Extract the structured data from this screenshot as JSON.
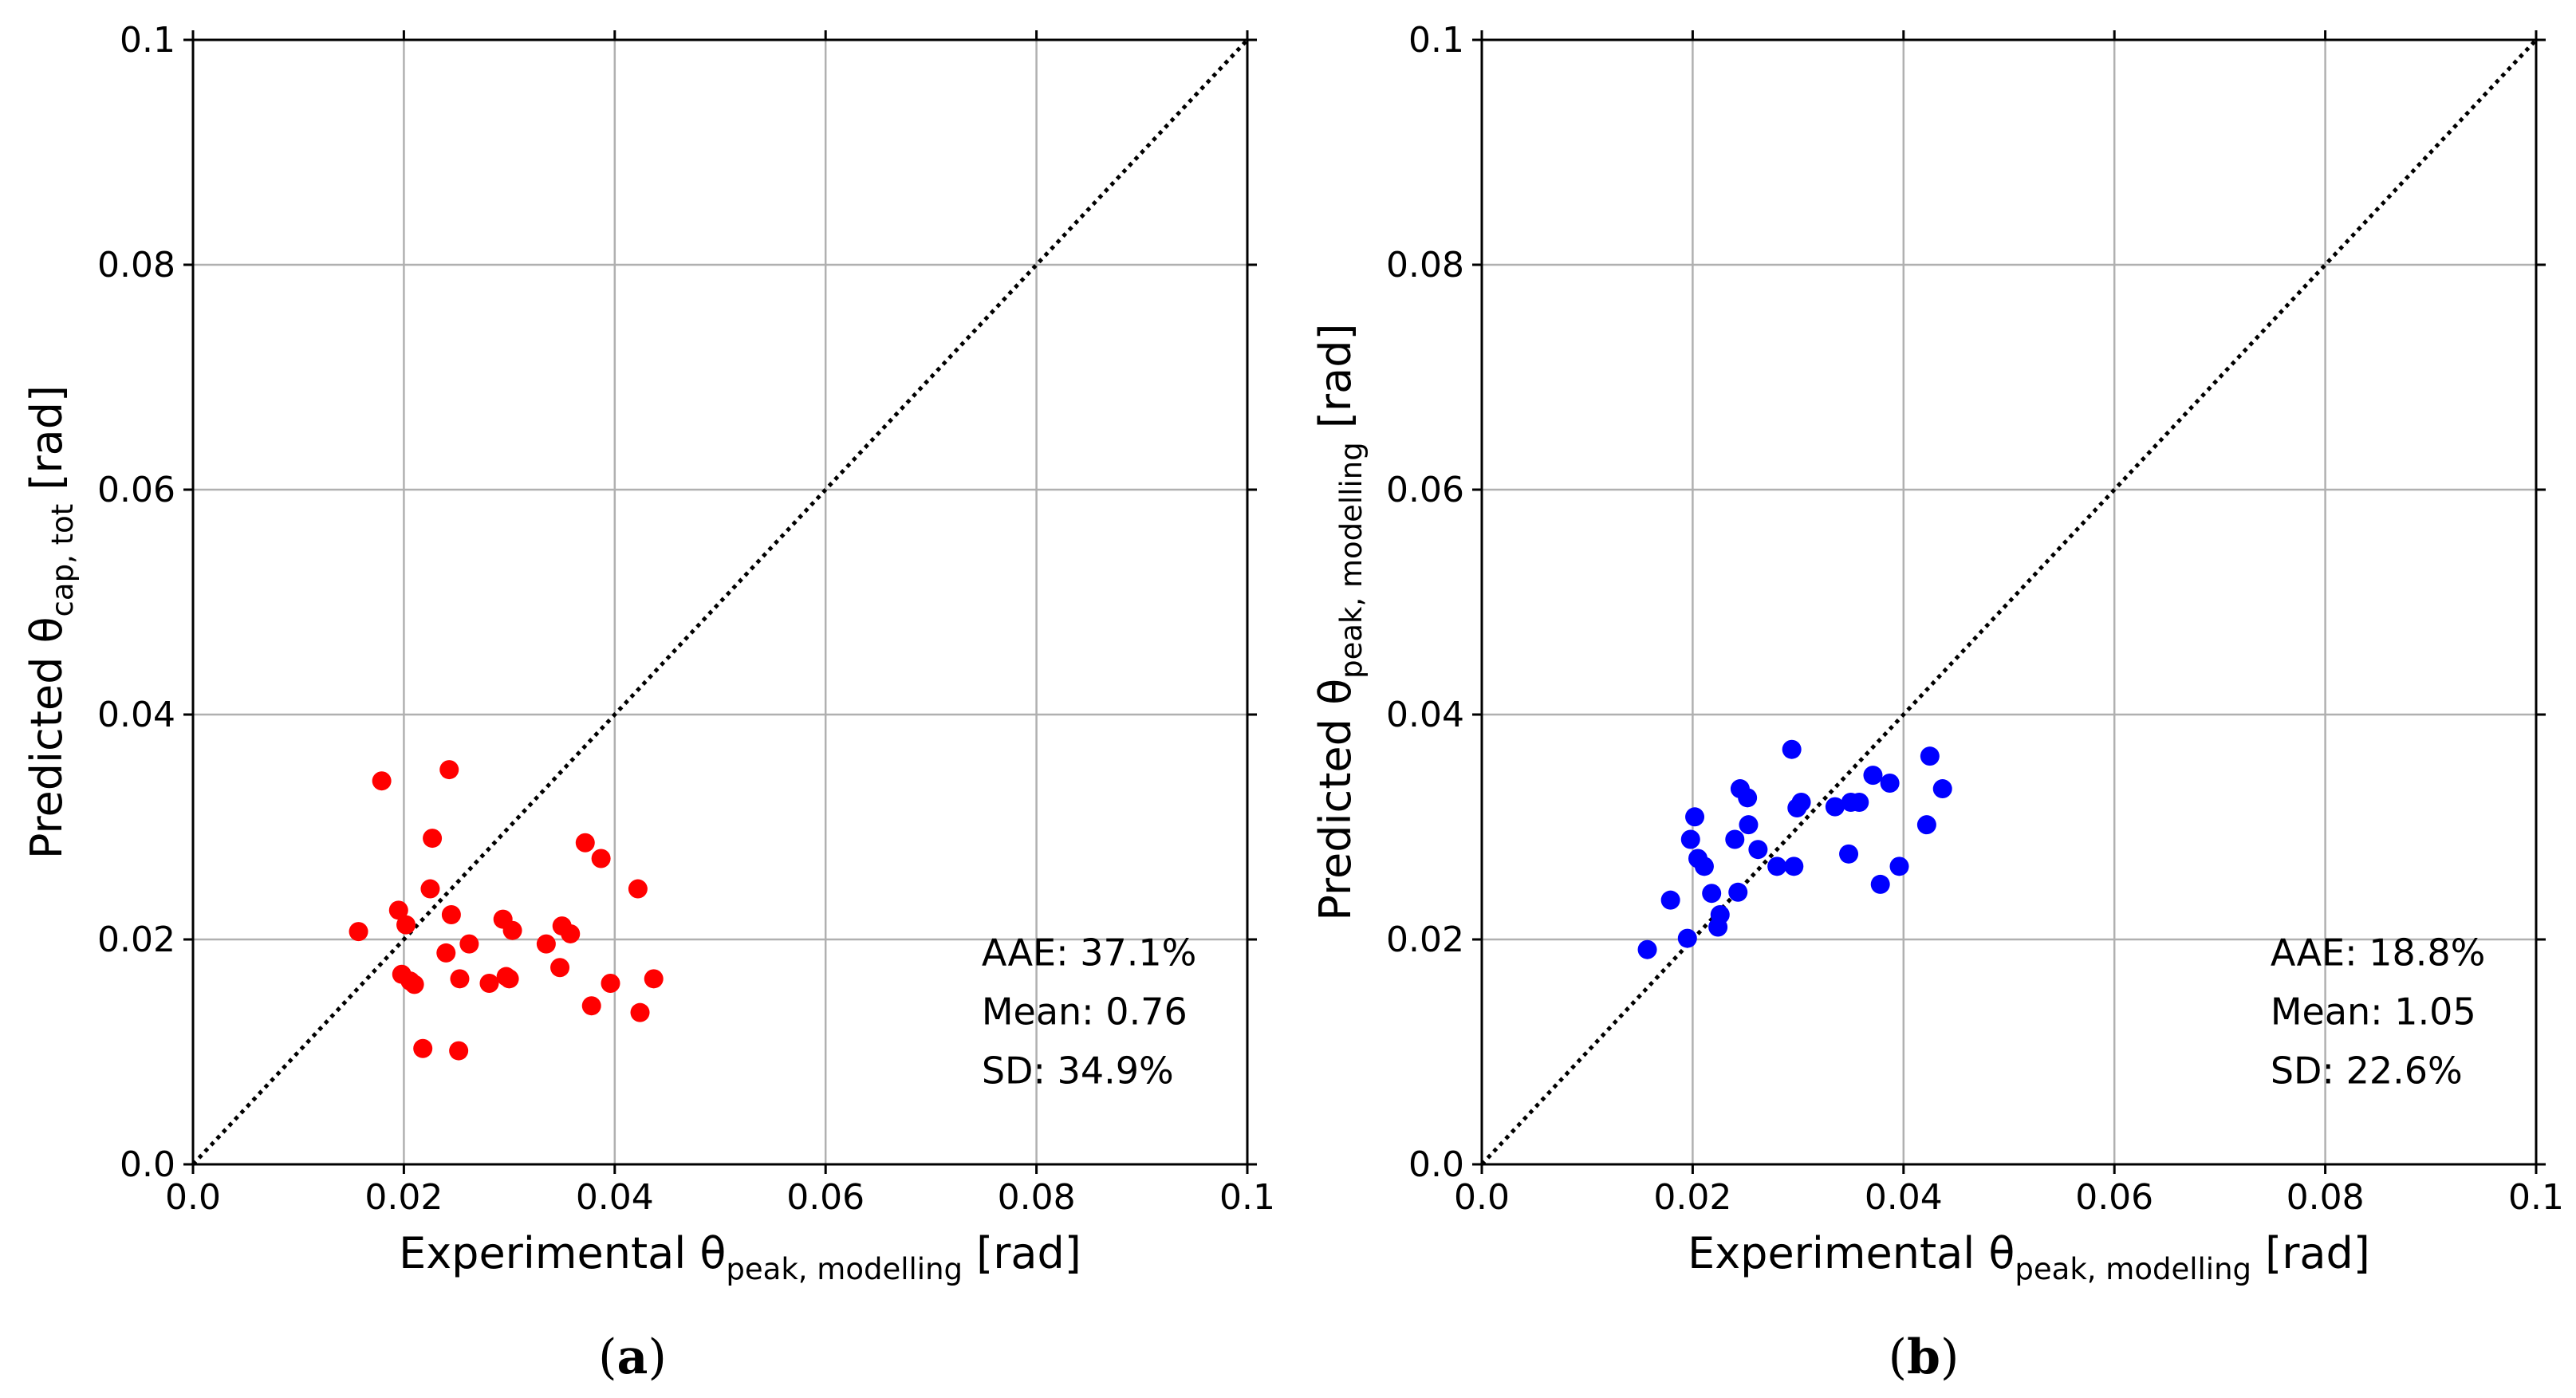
{
  "chart_data": [
    {
      "panel": "(a)",
      "type": "scatter",
      "caption": {
        "open": "(",
        "letter": "a",
        "close": ")"
      },
      "xlabel": {
        "main": "Experimental θ",
        "sub": "peak, modelling",
        "unit": " [rad]"
      },
      "ylabel": {
        "main": "Predicted θ",
        "sub": "cap, tot",
        "unit": " [rad]"
      },
      "xlim": [
        0,
        0.1
      ],
      "ylim": [
        0,
        0.1
      ],
      "xticks": [
        "0.0",
        "0.02",
        "0.04",
        "0.06",
        "0.08",
        "0.1"
      ],
      "yticks": [
        "0.0",
        "0.02",
        "0.04",
        "0.06",
        "0.08",
        "0.1"
      ],
      "grid": true,
      "reference_line": {
        "style": "dotted",
        "from": [
          0,
          0
        ],
        "to": [
          0.1,
          0.1
        ]
      },
      "marker_color": "#ff0000",
      "stats": [
        "AAE: 37.1%",
        "Mean: 0.76",
        "SD: 34.9%"
      ],
      "points": [
        [
          0.0157,
          0.0207
        ],
        [
          0.0179,
          0.0341
        ],
        [
          0.0195,
          0.0226
        ],
        [
          0.0198,
          0.0169
        ],
        [
          0.0202,
          0.0213
        ],
        [
          0.0206,
          0.0163
        ],
        [
          0.021,
          0.016
        ],
        [
          0.0218,
          0.0103
        ],
        [
          0.0225,
          0.0245
        ],
        [
          0.0227,
          0.029
        ],
        [
          0.024,
          0.0188
        ],
        [
          0.0243,
          0.0351
        ],
        [
          0.0245,
          0.0222
        ],
        [
          0.0252,
          0.0101
        ],
        [
          0.0253,
          0.0165
        ],
        [
          0.0262,
          0.0196
        ],
        [
          0.0281,
          0.0161
        ],
        [
          0.0294,
          0.0218
        ],
        [
          0.0297,
          0.0167
        ],
        [
          0.03,
          0.0165
        ],
        [
          0.0303,
          0.0208
        ],
        [
          0.0335,
          0.0196
        ],
        [
          0.0348,
          0.0175
        ],
        [
          0.035,
          0.0212
        ],
        [
          0.0358,
          0.0205
        ],
        [
          0.0372,
          0.0286
        ],
        [
          0.0378,
          0.0141
        ],
        [
          0.0387,
          0.0272
        ],
        [
          0.0396,
          0.0161
        ],
        [
          0.0422,
          0.0245
        ],
        [
          0.0424,
          0.0135
        ],
        [
          0.0437,
          0.0165
        ]
      ]
    },
    {
      "panel": "(b)",
      "type": "scatter",
      "caption": {
        "open": "(",
        "letter": "b",
        "close": ")"
      },
      "xlabel": {
        "main": "Experimental θ",
        "sub": "peak, modelling",
        "unit": " [rad]"
      },
      "ylabel": {
        "main": "Predicted θ",
        "sub": "peak, modelling",
        "unit": " [rad]"
      },
      "xlim": [
        0,
        0.1
      ],
      "ylim": [
        0,
        0.1
      ],
      "xticks": [
        "0.0",
        "0.02",
        "0.04",
        "0.06",
        "0.08",
        "0.1"
      ],
      "yticks": [
        "0.0",
        "0.02",
        "0.04",
        "0.06",
        "0.08",
        "0.1"
      ],
      "grid": true,
      "reference_line": {
        "style": "dotted",
        "from": [
          0,
          0
        ],
        "to": [
          0.1,
          0.1
        ]
      },
      "marker_color": "#0000ff",
      "stats": [
        "AAE: 18.8%",
        "Mean: 1.05",
        "SD: 22.6%"
      ],
      "points": [
        [
          0.0157,
          0.0191
        ],
        [
          0.0179,
          0.0235
        ],
        [
          0.0195,
          0.0201
        ],
        [
          0.0198,
          0.0289
        ],
        [
          0.0202,
          0.0309
        ],
        [
          0.0205,
          0.0272
        ],
        [
          0.0211,
          0.0265
        ],
        [
          0.0218,
          0.0241
        ],
        [
          0.0224,
          0.0211
        ],
        [
          0.0226,
          0.0222
        ],
        [
          0.024,
          0.0289
        ],
        [
          0.0243,
          0.0242
        ],
        [
          0.0245,
          0.0334
        ],
        [
          0.0252,
          0.0326
        ],
        [
          0.0253,
          0.0302
        ],
        [
          0.0262,
          0.028
        ],
        [
          0.028,
          0.0265
        ],
        [
          0.0294,
          0.0369
        ],
        [
          0.0296,
          0.0265
        ],
        [
          0.0299,
          0.0317
        ],
        [
          0.0303,
          0.0322
        ],
        [
          0.0335,
          0.0318
        ],
        [
          0.0348,
          0.0276
        ],
        [
          0.035,
          0.0322
        ],
        [
          0.0358,
          0.0322
        ],
        [
          0.0371,
          0.0346
        ],
        [
          0.0378,
          0.0249
        ],
        [
          0.0387,
          0.0339
        ],
        [
          0.0396,
          0.0265
        ],
        [
          0.0422,
          0.0302
        ],
        [
          0.0425,
          0.0363
        ],
        [
          0.0437,
          0.0334
        ]
      ]
    }
  ]
}
